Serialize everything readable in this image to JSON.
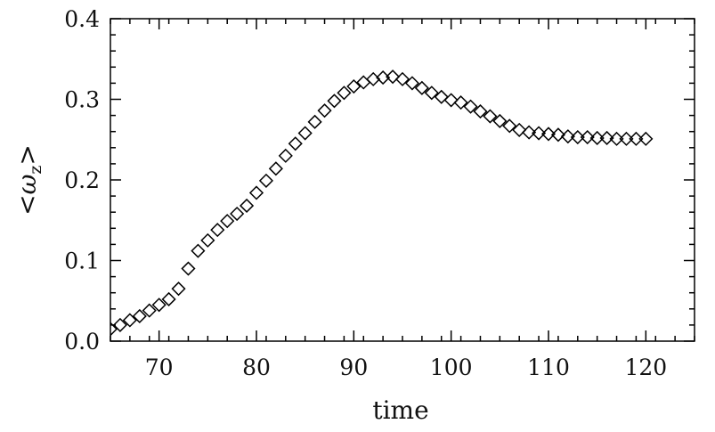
{
  "chart_data": {
    "type": "scatter",
    "title": "",
    "xlabel": "time",
    "ylabel": "<ω_z>",
    "ylabel_parts": {
      "open": "<",
      "symbol": "ω",
      "subscript": "z",
      "close": ">"
    },
    "xlim": [
      65,
      125
    ],
    "ylim": [
      0,
      0.4
    ],
    "marker": "diamond-open",
    "marker_color": "#000000",
    "grid": false,
    "x_ticks": [
      {
        "value": 70,
        "label": "70"
      },
      {
        "value": 80,
        "label": "80"
      },
      {
        "value": 90,
        "label": "90"
      },
      {
        "value": 100,
        "label": "100"
      },
      {
        "value": 110,
        "label": "110"
      },
      {
        "value": 120,
        "label": "120"
      }
    ],
    "y_ticks": [
      {
        "value": 0.0,
        "label": "0.0"
      },
      {
        "value": 0.1,
        "label": "0.1"
      },
      {
        "value": 0.2,
        "label": "0.2"
      },
      {
        "value": 0.3,
        "label": "0.3"
      },
      {
        "value": 0.4,
        "label": "0.4"
      }
    ],
    "x_minor_step": 2,
    "y_minor_step": 0.02,
    "series": [
      {
        "x": [
          65,
          66,
          67,
          68,
          69,
          70,
          71,
          72,
          73,
          74,
          75,
          76,
          77,
          78,
          79,
          80,
          81,
          82,
          83,
          84,
          85,
          86,
          87,
          88,
          89,
          90,
          91,
          92,
          93,
          94,
          95,
          96,
          97,
          98,
          99,
          100,
          101,
          102,
          103,
          104,
          105,
          106,
          107,
          108,
          109,
          110,
          111,
          112,
          113,
          114,
          115,
          116,
          117,
          118,
          119,
          120
        ],
        "y": [
          0.015,
          0.02,
          0.026,
          0.031,
          0.038,
          0.045,
          0.052,
          0.065,
          0.09,
          0.112,
          0.125,
          0.138,
          0.149,
          0.158,
          0.168,
          0.184,
          0.199,
          0.214,
          0.23,
          0.245,
          0.258,
          0.272,
          0.286,
          0.298,
          0.308,
          0.316,
          0.321,
          0.325,
          0.327,
          0.328,
          0.325,
          0.32,
          0.314,
          0.308,
          0.303,
          0.299,
          0.296,
          0.291,
          0.285,
          0.279,
          0.273,
          0.267,
          0.262,
          0.259,
          0.258,
          0.257,
          0.256,
          0.254,
          0.253,
          0.253,
          0.252,
          0.252,
          0.251,
          0.251,
          0.251,
          0.251
        ]
      }
    ]
  }
}
